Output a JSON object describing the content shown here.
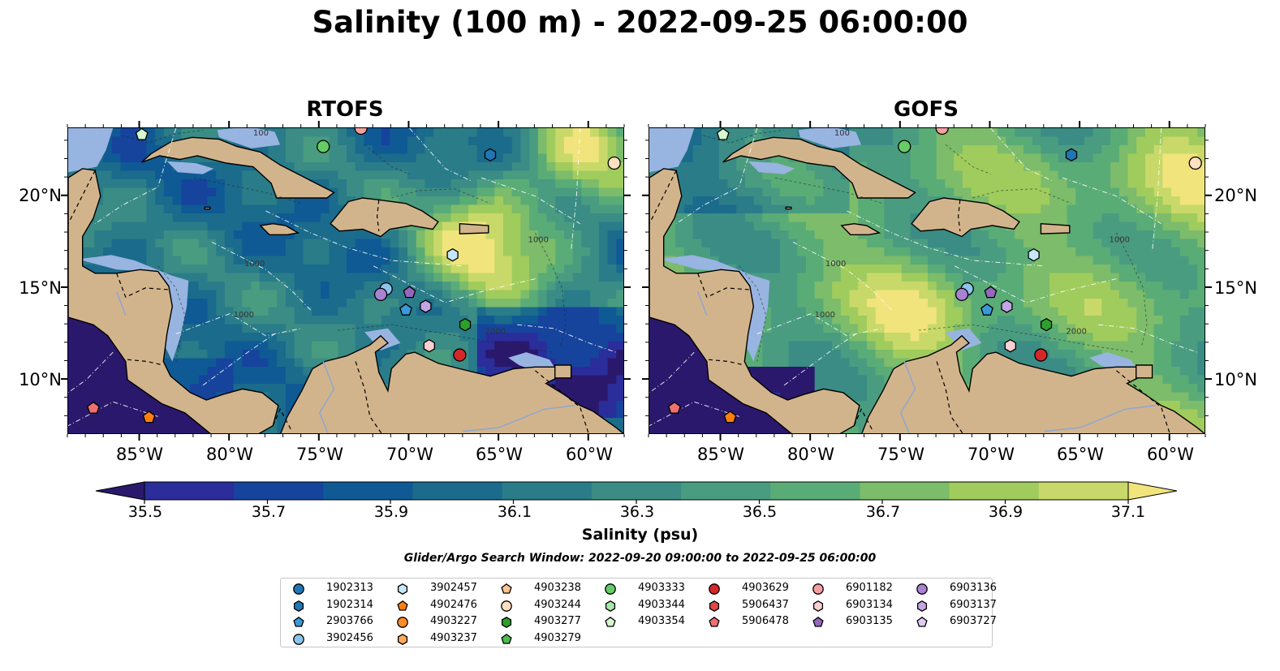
{
  "figure_title": "Salinity (100 m) - 2022-09-25 06:00:00",
  "panels": [
    {
      "title": "RTOFS",
      "field_style": "rtofs"
    },
    {
      "title": "GOFS",
      "field_style": "gofs"
    }
  ],
  "map": {
    "lon_range": [
      -89,
      -58
    ],
    "lat_range": [
      7,
      23.7
    ],
    "lat_ticks": [
      "20°N",
      "15°N",
      "10°N"
    ],
    "lon_ticks": [
      "85°W",
      "80°W",
      "75°W",
      "70°W",
      "65°W",
      "60°W"
    ],
    "contour_labels": [
      "1000",
      "1000",
      "1000",
      "2000",
      "100"
    ],
    "colors": {
      "land": "#d2b48c",
      "shallow_water": "#98b4e0",
      "coastline": "#000000"
    }
  },
  "colorbar": {
    "label": "Salinity (psu)",
    "ticks": [
      "35.5",
      "35.7",
      "35.9",
      "36.1",
      "36.3",
      "36.5",
      "36.7",
      "36.9",
      "37.1"
    ],
    "colormap": "haline",
    "colors": [
      "#2a186c",
      "#2a2d9a",
      "#16449d",
      "#0f5a94",
      "#1b6b8c",
      "#2a7c89",
      "#3a8c85",
      "#4a9c80",
      "#5aac77",
      "#7cbc6a",
      "#a0cc5d",
      "#c8d96a",
      "#f1e47c"
    ]
  },
  "search_window": "Glider/Argo Search Window: 2022-09-20 09:00:00 to 2022-09-25 06:00:00",
  "legend": [
    {
      "id": "1902313",
      "marker": "circle",
      "color": "#1f77b4"
    },
    {
      "id": "1902314",
      "marker": "hexagon",
      "color": "#1f77b4"
    },
    {
      "id": "2903766",
      "marker": "pentagon",
      "color": "#3a9ad9"
    },
    {
      "id": "3902456",
      "marker": "circle",
      "color": "#8ec4ec"
    },
    {
      "id": "3902457",
      "marker": "hexagon",
      "color": "#c6e6fb"
    },
    {
      "id": "4902476",
      "marker": "pentagon",
      "color": "#ff7f0e"
    },
    {
      "id": "4903227",
      "marker": "circle",
      "color": "#ff8c26"
    },
    {
      "id": "4903237",
      "marker": "hexagon",
      "color": "#ffa95a"
    },
    {
      "id": "4903238",
      "marker": "pentagon",
      "color": "#ffc48c"
    },
    {
      "id": "4903244",
      "marker": "circle",
      "color": "#ffe0c0"
    },
    {
      "id": "4903277",
      "marker": "hexagon",
      "color": "#2ca02c"
    },
    {
      "id": "4903279",
      "marker": "pentagon",
      "color": "#4cbc4c"
    },
    {
      "id": "4903333",
      "marker": "circle",
      "color": "#66cc66"
    },
    {
      "id": "4903344",
      "marker": "hexagon",
      "color": "#a8e8a8"
    },
    {
      "id": "4903354",
      "marker": "pentagon",
      "color": "#d6f8d0"
    },
    {
      "id": "4903629",
      "marker": "circle",
      "color": "#d62728"
    },
    {
      "id": "5906437",
      "marker": "hexagon",
      "color": "#e04848"
    },
    {
      "id": "5906478",
      "marker": "pentagon",
      "color": "#ee7070"
    },
    {
      "id": "6901182",
      "marker": "circle",
      "color": "#f4a0a0"
    },
    {
      "id": "6903134",
      "marker": "hexagon",
      "color": "#fbd0d0"
    },
    {
      "id": "6903135",
      "marker": "pentagon",
      "color": "#9467bd"
    },
    {
      "id": "6903136",
      "marker": "circle",
      "color": "#a982d2"
    },
    {
      "id": "6903137",
      "marker": "hexagon",
      "color": "#c3a4e4"
    },
    {
      "id": "6903727",
      "marker": "pentagon",
      "color": "#e0ccf4"
    }
  ],
  "floats": [
    {
      "id": "4903354",
      "lon": -84.9,
      "lat": 23.35
    },
    {
      "id": "4903333",
      "lon": -74.8,
      "lat": 22.7
    },
    {
      "id": "6901182",
      "lon": -72.7,
      "lat": 23.7
    },
    {
      "id": "1902314",
      "lon": -65.5,
      "lat": 22.25
    },
    {
      "id": "4903244",
      "lon": -58.6,
      "lat": 21.8
    },
    {
      "id": "3902457",
      "lon": -67.6,
      "lat": 16.8
    },
    {
      "id": "3902456",
      "lon": -71.3,
      "lat": 14.95
    },
    {
      "id": "6903136",
      "lon": -71.6,
      "lat": 14.65
    },
    {
      "id": "6903135",
      "lon": -70.0,
      "lat": 14.75
    },
    {
      "id": "2903766",
      "lon": -70.2,
      "lat": 13.8
    },
    {
      "id": "6903137",
      "lon": -69.1,
      "lat": 14.0
    },
    {
      "id": "4903277",
      "lon": -66.9,
      "lat": 13.0
    },
    {
      "id": "6903134",
      "lon": -68.9,
      "lat": 11.85
    },
    {
      "id": "4903629",
      "lon": -67.2,
      "lat": 11.35
    },
    {
      "id": "5906478",
      "lon": -87.6,
      "lat": 8.45
    },
    {
      "id": "4902476",
      "lon": -84.5,
      "lat": 7.95
    }
  ]
}
